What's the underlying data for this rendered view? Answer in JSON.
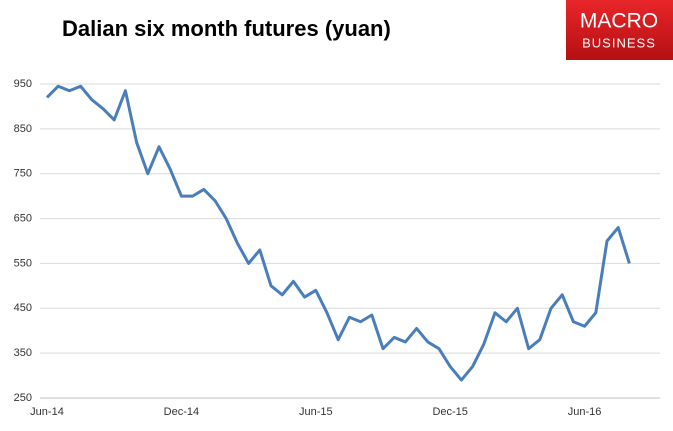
{
  "chart_data": {
    "type": "line",
    "title": "Dalian six month futures (yuan)",
    "logo": {
      "line1": "MACRO",
      "line2": "BUSINESS"
    },
    "categories": [
      "Jun-14",
      null,
      null,
      null,
      null,
      null,
      null,
      null,
      null,
      null,
      null,
      null,
      "Dec-14",
      null,
      null,
      null,
      null,
      null,
      null,
      null,
      null,
      null,
      null,
      null,
      "Jun-15",
      null,
      null,
      null,
      null,
      null,
      null,
      null,
      null,
      null,
      null,
      null,
      "Dec-15",
      null,
      null,
      null,
      null,
      null,
      null,
      null,
      null,
      null,
      null,
      null,
      "Jun-16",
      null,
      null,
      null,
      null
    ],
    "series": [
      {
        "name": "Dalian six month futures",
        "color": "#4a7ebb",
        "values": [
          920,
          945,
          935,
          945,
          915,
          895,
          870,
          935,
          820,
          750,
          810,
          760,
          700,
          700,
          715,
          690,
          650,
          595,
          550,
          580,
          500,
          480,
          510,
          475,
          490,
          440,
          380,
          430,
          420,
          435,
          360,
          385,
          375,
          405,
          375,
          360,
          320,
          290,
          320,
          370,
          440,
          420,
          450,
          360,
          380,
          450,
          480,
          420,
          410,
          440,
          600,
          630,
          550
        ]
      }
    ],
    "ylim": [
      250,
      950
    ],
    "yticks": [
      250,
      350,
      450,
      550,
      650,
      750,
      850,
      950
    ],
    "grid": true
  }
}
